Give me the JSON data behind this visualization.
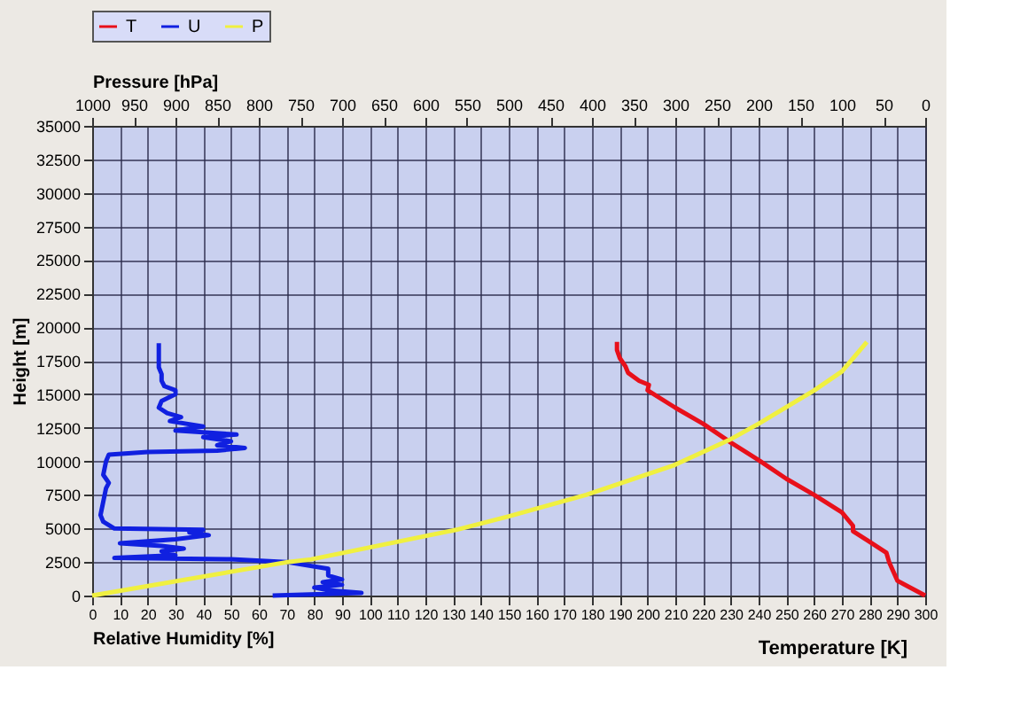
{
  "chart_data": {
    "type": "line",
    "xlabel": "Relative Humidity [%]",
    "ylabel": "Height [m]",
    "x2label": "Pressure [hPa]",
    "annotations": [
      "Temperature [K]"
    ],
    "xlim": [
      0,
      300
    ],
    "xticks": [
      0,
      10,
      20,
      30,
      40,
      50,
      60,
      70,
      80,
      90,
      100,
      110,
      120,
      130,
      140,
      150,
      160,
      170,
      180,
      190,
      200,
      210,
      220,
      230,
      240,
      250,
      260,
      270,
      280,
      290,
      300
    ],
    "x2lim": [
      1000,
      0
    ],
    "x2ticks": [
      1000,
      950,
      900,
      850,
      800,
      750,
      700,
      650,
      600,
      550,
      500,
      450,
      400,
      350,
      300,
      250,
      200,
      150,
      100,
      50,
      0
    ],
    "ylim": [
      0,
      35000
    ],
    "yticks": [
      0,
      2500,
      5000,
      7500,
      10000,
      12500,
      15000,
      17500,
      20000,
      22500,
      25000,
      27500,
      30000,
      32500,
      35000
    ],
    "grid": true,
    "legend": "top",
    "marker": "none",
    "line_style": "solid",
    "series": [
      {
        "name": "T",
        "color": "#e8101a",
        "x": [
          300,
          290,
          287,
          286,
          280,
          274,
          274,
          270,
          260,
          250,
          240,
          230,
          220,
          210,
          200,
          200.5,
          197,
          193,
          192,
          190,
          189,
          189
        ],
        "values": [
          0,
          1100,
          2500,
          3200,
          4000,
          4800,
          5200,
          6200,
          7500,
          8700,
          10100,
          11400,
          12800,
          14000,
          15300,
          15700,
          16000,
          16600,
          17100,
          17700,
          18300,
          18900
        ]
      },
      {
        "name": "U",
        "color": "#1020e0",
        "x": [
          65,
          97,
          85,
          80,
          90,
          83,
          90,
          85,
          85,
          70,
          50,
          8,
          30,
          25,
          33,
          25,
          10,
          30,
          42,
          35,
          40,
          8,
          4,
          3,
          4,
          5,
          6,
          4,
          5,
          6,
          20,
          45,
          55,
          45,
          50,
          40,
          52,
          30,
          40,
          28,
          32,
          27,
          24,
          25,
          30,
          30,
          26,
          25,
          25,
          24,
          24,
          24
        ],
        "values": [
          0,
          200,
          400,
          600,
          800,
          1000,
          1200,
          1500,
          2000,
          2500,
          2700,
          2800,
          3000,
          3300,
          3500,
          3700,
          3900,
          4200,
          4500,
          4700,
          4900,
          5000,
          5500,
          6000,
          7000,
          8000,
          8400,
          9000,
          10000,
          10500,
          10700,
          10800,
          11000,
          11200,
          11500,
          11800,
          12000,
          12300,
          12600,
          13000,
          13300,
          13600,
          14000,
          14500,
          15000,
          15300,
          15600,
          16000,
          16500,
          17000,
          17500,
          18800
        ]
      },
      {
        "name": "P",
        "color": "#f0f040",
        "axis": "x2",
        "x": [
          1000,
          765,
          737,
          563,
          500,
          407,
          302,
          235,
          200,
          133,
          100,
          70
        ],
        "values": [
          0,
          2500,
          2700,
          4900,
          5900,
          7500,
          9700,
          11600,
          12800,
          15300,
          16700,
          18900
        ]
      }
    ]
  }
}
